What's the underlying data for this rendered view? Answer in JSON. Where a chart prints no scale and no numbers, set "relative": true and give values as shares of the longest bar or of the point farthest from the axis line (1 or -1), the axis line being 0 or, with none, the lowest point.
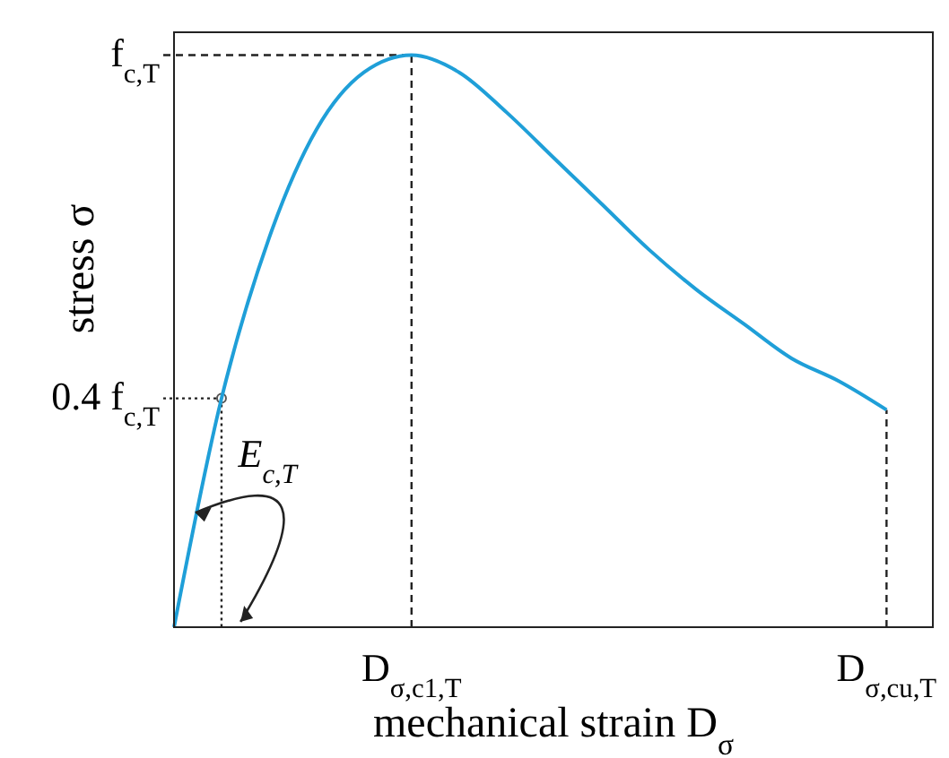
{
  "chart_data": {
    "type": "line",
    "xlabel": "mechanical strain D$_{σ}$",
    "ylabel": "stress σ",
    "categories": [
      null,
      null,
      null,
      null,
      null,
      "D$_{σ,c1,T}$",
      null,
      null,
      null,
      null,
      null,
      null,
      null,
      null,
      null,
      "D$_{σ,cu,T}$"
    ],
    "series": [
      {
        "color": "#1f9fd8",
        "values": [
          0,
          0.4,
          0.68,
          0.87,
          0.97,
          1,
          0.97,
          0.9,
          0.82,
          0.74,
          0.66,
          0.59,
          0.53,
          0.47,
          0.43,
          0.38
        ]
      }
    ],
    "relative": true,
    "ref_lines": [
      {
        "axis": "y",
        "value": 1,
        "label": "f$_{c,T}$",
        "line_style": "dashed"
      },
      {
        "axis": "x",
        "value": "D$_{σ,c1,T}$",
        "line_style": "dashed"
      },
      {
        "axis": "x",
        "value": "D$_{σ,cu,T}$",
        "line_style": "dashed"
      },
      {
        "axis": "y",
        "value": 0.4,
        "label": "0.4 f$_{c,T}$",
        "line_style": "dotted"
      }
    ],
    "annotations": [
      "E$_{c,T}$"
    ],
    "grid": false,
    "marker": "none",
    "line_style": "solid"
  }
}
